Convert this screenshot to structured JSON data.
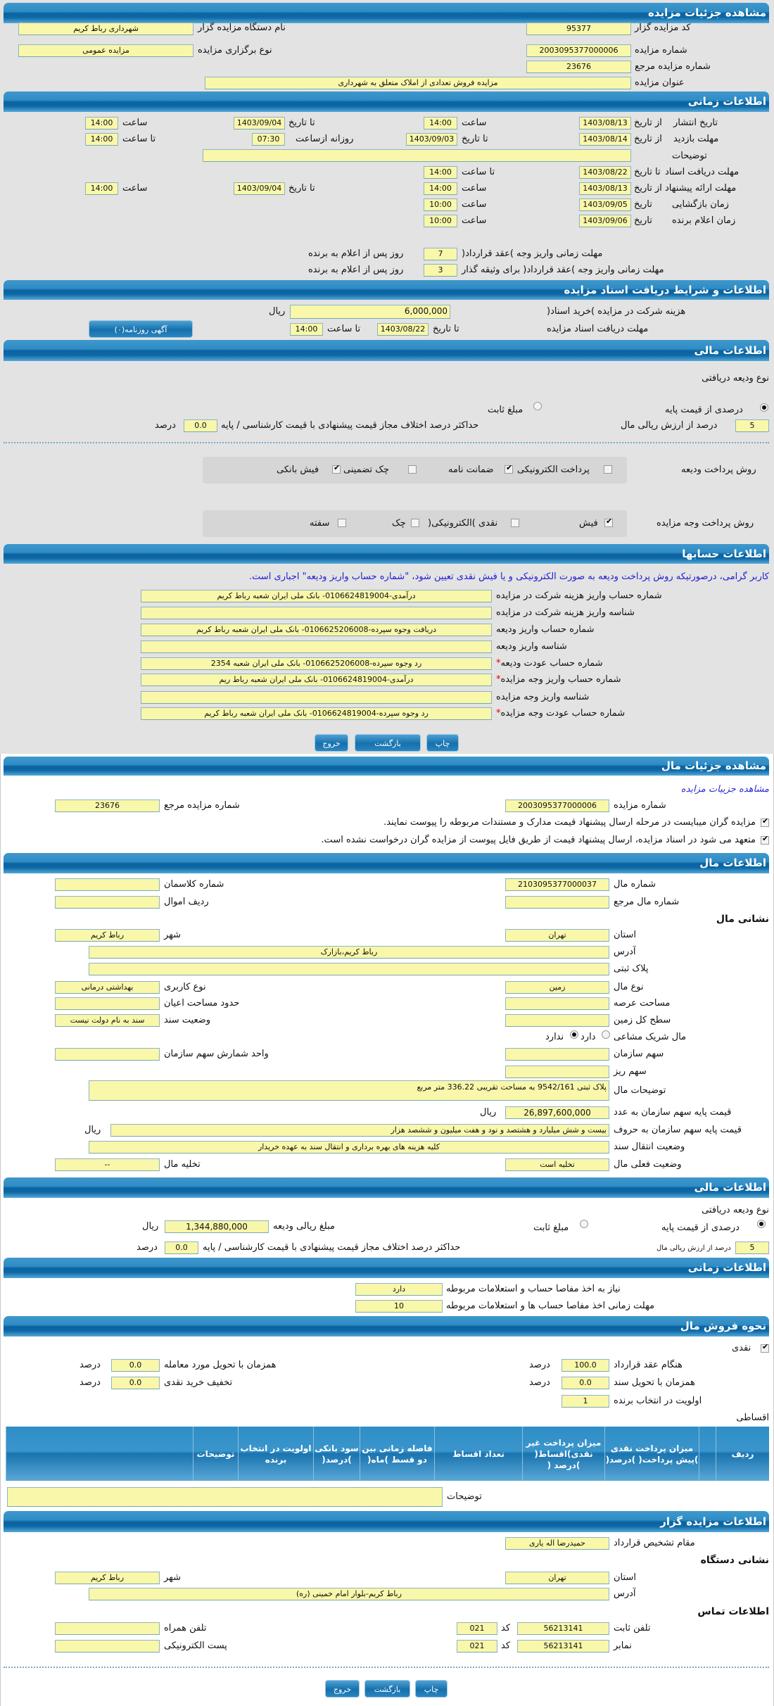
{
  "s1": {
    "title": "مشاهده جزئیات مزایده",
    "code_l": "کد مزایده گزار",
    "code": "95377",
    "org_l": "نام دستگاه مزایده گزار",
    "org": "شهرداری رباط کریم",
    "num_l": "شماره مزایده",
    "num": "2003095377000006",
    "type_l": "نوع برگزاری مزایده",
    "type": "مزایده عمومی",
    "ref_l": "شماره مزایده مرجع",
    "ref": "23676",
    "subj_l": "عنوان مزایده",
    "subj": "مزایده فروش تعدادی از املاک متعلق به شهرداری"
  },
  "time": {
    "title": "اطلاعات زمانی",
    "from": "از تاریخ",
    "to": "تا تاریخ",
    "hour": "ساعت",
    "to_hour": "تا ساعت",
    "date": "تاریخ",
    "pub_l": "تاریخ انتشار",
    "pub_from": "1403/08/13",
    "pub_from_t": "14:00",
    "pub_to": "1403/09/04",
    "pub_to_t": "14:00",
    "visit_l": "مهلت بازدید",
    "visit_from": "1403/08/14",
    "visit_to": "1403/09/03",
    "daily_l": "روزانه ازساعت",
    "daily_from": "07:30",
    "daily_to": "14:00",
    "desc_l": "توضیحات",
    "desc": "",
    "docs_l": "مهلت دریافت اسناد",
    "docs_to": "1403/08/22",
    "docs_to_t": "14:00",
    "offer_l": "مهلت ارائه پیشنهاد",
    "offer_from": "1403/08/13",
    "offer_from_t": "14:00",
    "offer_to": "1403/09/04",
    "offer_to_t": "14:00",
    "open_l": "زمان بازگشایی",
    "open": "1403/09/05",
    "open_t": "10:00",
    "win_l": "زمان اعلام برنده",
    "win": "1403/09/06",
    "win_t": "10:00",
    "pay1_l": "مهلت زمانی واریز وجه )عقد قرارداد(",
    "pay1": "7",
    "pay2_l": "مهلت زمانی واریز وجه )عقد قرارداد( برای وثیقه گذار",
    "pay2": "3",
    "days_after": "روز پس از اعلام به برنده"
  },
  "docs": {
    "title": "اطلاعات و شرایط دریافت اسناد مزایده",
    "fee_l": "هزینه شرکت در مزایده )خرید اسناد(",
    "fee": "6,000,000",
    "rial": "ریال",
    "dl_l": "مهلت دریافت اسناد مزایده",
    "to": "تا تاریخ",
    "dl": "1403/08/22",
    "to_hour": "تا ساعت",
    "dl_t": "14:00",
    "ad_btn": "آگهی روزنامه(۰)"
  },
  "fin": {
    "title": "اطلاعات مالی",
    "dep_type_l": "نوع ودیعه دریافتی",
    "opt_percent": "درصدی از قیمت پایه",
    "opt_percent_on": true,
    "opt_fixed": "مبلغ ثابت",
    "opt_fixed_on": false,
    "pct": "5",
    "pct_l": "درصد از ارزش ریالی مال",
    "maxdiff_l": "حداکثر درصد اختلاف مجاز قیمت پیشنهادی با قیمت کارشناسی / پایه",
    "maxdiff": "0.0",
    "percent": "درصد",
    "dep_method_l": "روش پرداخت ودیعه",
    "dm": [
      {
        "label": "پرداخت الکترونیکی",
        "on": false
      },
      {
        "label": "ضمانت نامه",
        "on": true
      },
      {
        "label": "چک تضمینی",
        "on": false
      },
      {
        "label": "فیش بانکی",
        "on": true
      }
    ],
    "pay_method_l": "روش پرداخت وجه مزایده",
    "pm": [
      {
        "label": "فیش",
        "on": true
      },
      {
        "label": "نقدی )الکترونیکی(",
        "on": false
      },
      {
        "label": "چک",
        "on": false
      },
      {
        "label": "سفته",
        "on": false
      }
    ]
  },
  "acc": {
    "title": "اطلاعات حسابها",
    "note": "کاربر گرامی، درصورتیکه روش پرداخت ودیعه به صورت الکترونیکی و یا فیش نقدی تعیین شود، \"شماره حساب واریز ودیعه\" اجباری است.",
    "req": "*",
    "rows": [
      {
        "label": "شماره حساب واریز هزینه شرکت در مزایده",
        "value": "درآمدی-0106624819004- بانک ملی ایران شعبه رباط کریم"
      },
      {
        "label": "شناسه واریز هزینه شرکت در مزایده",
        "value": ""
      },
      {
        "label": "شماره حساب واریز ودیعه",
        "value": "دریافت وجوه سپرده-0106625206008- بانک ملی ایران شعبه رباط کریم"
      },
      {
        "label": "شناسه واریز ودیعه",
        "value": ""
      },
      {
        "label": "شماره حساب عودت ودیعه",
        "value": "رد وجوه سپرده-0106625206008- بانک ملی ایران شعبه 2354"
      },
      {
        "label": "شماره حساب واریز وجه مزایده",
        "value": "درآمدی-0106624819004- بانک ملی ایران شعبه رباط ریم"
      },
      {
        "label": "شناسه واریز وجه مزایده",
        "value": ""
      },
      {
        "label": "شماره حساب عودت وجه مزایده",
        "value": "رد وجوه سپرده-0106624819004- بانک ملی ایران شعبه رباط کریم"
      }
    ]
  },
  "buttons": {
    "print": "چاپ",
    "back": "بازگشت",
    "exit": "خروج"
  },
  "item": {
    "title": "مشاهده جزئیات مال",
    "link": "مشاهده جزییات مزایده",
    "num_l": "شماره مزایده",
    "num": "2003095377000006",
    "ref_l": "شماره مزایده مرجع",
    "ref": "23676",
    "chk1": "مزایده گران میبایست در مرحله ارسال پیشنهاد قیمت مدارک و مستندات مربوطه را پیوست نمایند.",
    "chk1_on": true,
    "chk2": "متعهد می شود در اسناد مزایده، ارسال پیشنهاد قیمت از طریق فایل پیوست از مزایده گران درخواست نشده است.",
    "chk2_on": true,
    "info_title": "اطلاعات مال",
    "inum_l": "شماره مال",
    "inum": "2103095377000037",
    "class_l": "شماره کلاسمان",
    "class": "",
    "iref_l": "شماره مال مرجع",
    "iref": "",
    "row_l": "ردیف اموال",
    "row": "",
    "addr_title": "نشانی مال",
    "prov_l": "استان",
    "prov": "تهران",
    "city_l": "شهر",
    "city": "رباط کریم",
    "addr_l": "آدرس",
    "addr": "رباط کریم،بازارک",
    "plaque_l": "پلاک ثبتی",
    "plaque": "",
    "kind_l": "نوع مال",
    "kind": "زمین",
    "use_l": "نوع کاربری",
    "use": "بهداشتی درمانی",
    "area_l": "مساحت عرصه",
    "area": "",
    "build_l": "حدود مساحت اعیان",
    "build": "",
    "total_l": "سطح کل زمین",
    "total": "",
    "deed_l": "وضعیت سند",
    "deed": "سند به نام دولت نیست",
    "share_l": "مال شریک مشاعی",
    "has": "دارد",
    "has_on": false,
    "hasnt": "ندارد",
    "hasnt_on": true,
    "org_share_l": "سهم سازمان",
    "org_share": "",
    "unit_l": "واحد شمارش سهم سازمان",
    "unit": "",
    "small_l": "سهم ریز",
    "small": "",
    "desc_l": "توضیحات مال",
    "desc": "پلاک ثبتی 9542/161 به مساحت تقریبی 336.22 متر مربع",
    "price_l": "قیمت پایه سهم سازمان به عدد",
    "price": "26,897,600,000",
    "rial": "ریال",
    "pricew_l": "قیمت پایه سهم سازمان به حروف",
    "pricew": "بیست و شش میلیارد و هشتصد و نود و هفت میلیون و ششصد هزار",
    "transfer_l": "وضعیت انتقال سند",
    "transfer": "کلیه هزینه های بهره برداری و انتقال سند به عهده خریدار",
    "status_l": "وضعیت فعلی مال",
    "status": "تخلیه است",
    "evac_l": "تخلیه مال",
    "evac": "--"
  },
  "fin2": {
    "title": "اطلاعات مالی",
    "dep_type_l": "نوع ودیعه دریافتی",
    "opt_percent": "درصدی از قیمت پایه",
    "opt_percent_on": true,
    "opt_fixed": "مبلغ ثابت",
    "opt_fixed_on": false,
    "amount_l": "مبلغ ریالی ودیعه",
    "amount": "1,344,880,000",
    "rial": "ریال",
    "pct": "5",
    "pct_l": "درصد از ارزش ریالی مال",
    "maxdiff_l": "حداکثر درصد اختلاف مجاز قیمت پیشنهادی با قیمت کارشناسی / پایه",
    "maxdiff": "0.0",
    "percent": "درصد"
  },
  "time2": {
    "title": "اطلاعات زمانی",
    "need_l": "نیاز به اخذ مفاصا حساب و استعلامات مربوطه",
    "need": "دارد",
    "dl_l": "مهلت زمانی اخذ مفاصا حساب ها و استعلامات مربوطه",
    "dl": "10"
  },
  "sale": {
    "title": "نحوه فروش مال",
    "cash": "نقدی",
    "cash_on": true,
    "contract_l": "هنگام عقد قرارداد",
    "contract": "100.0",
    "deliv_l": "همزمان با تحویل مورد معامله",
    "deliv": "0.0",
    "deed_l": "همزمان با تحویل سند",
    "deed": "0.0",
    "disc_l": "تخفیف خرید نقدی",
    "disc": "0.0",
    "prio_l": "اولویت در انتخاب برنده",
    "prio": "1",
    "percent": "درصد",
    "inst": "اقساطی",
    "cols": [
      "ردیف",
      "",
      "میزان پرداخت نقدی )پیش پرداخت( )درصد(",
      "میزان پرداخت غیر نقدی)اقساط( )درصد (",
      "تعداد اقساط",
      "فاصله زمانی بین دو قسط )ماه(",
      "سود بانکی )درصد(",
      "اولویت در انتخاب برنده",
      "توضیحات",
      ""
    ],
    "desc_l": "توضیحات",
    "desc": ""
  },
  "seller": {
    "title": "اطلاعات مزایده گزار",
    "auth_l": "مقام تشخیص قرارداد",
    "auth": "حمیدرضا اله یاری",
    "addr_title": "نشانی دستگاه",
    "prov_l": "استان",
    "prov": "تهران",
    "city_l": "شهر",
    "city": "رباط کریم",
    "addr_l": "آدرس",
    "addr": "رباط کریم-بلوار امام خمینی (ره)",
    "contact_title": "اطلاعات تماس",
    "tel_l": "تلفن ثابت",
    "tel": "56213141",
    "code_l": "کد",
    "tel_code": "021",
    "mob_l": "تلفن همراه",
    "mob": "",
    "fax_l": "نمابر",
    "fax": "56213141",
    "fax_code": "021",
    "email_l": "پست الکترونیکی",
    "email": ""
  }
}
